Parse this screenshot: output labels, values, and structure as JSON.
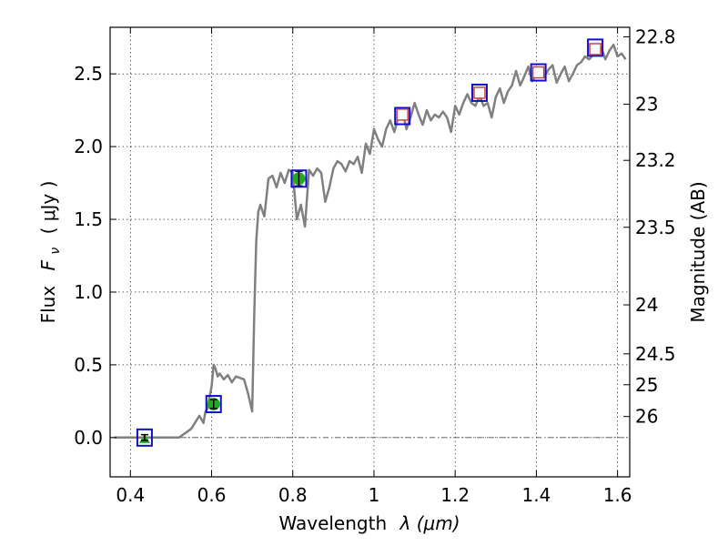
{
  "chart_data": {
    "type": "line",
    "xlabel": "Wavelength",
    "xlabel_symbol": "λ (μm)",
    "ylabel": "Flux",
    "ylabel_symbol": "F",
    "ylabel_subscript": "ν",
    "ylabel_units": "( μJy )",
    "ylabel_right": "Magnitude (AB)",
    "xlim": [
      0.35,
      1.63
    ],
    "ylim": [
      -0.27,
      2.82
    ],
    "grid": true,
    "x_ticks": [
      0.4,
      0.6,
      0.8,
      1.0,
      1.2,
      1.4,
      1.6
    ],
    "x_tick_labels": [
      "0.4",
      "0.6",
      "0.8",
      "1",
      "1.2",
      "1.4",
      "1.6"
    ],
    "y_ticks": [
      0.0,
      0.5,
      1.0,
      1.5,
      2.0,
      2.5
    ],
    "y_tick_labels": [
      "0.0",
      "0.5",
      "1.0",
      "1.5",
      "2.0",
      "2.5"
    ],
    "right_axis": {
      "ticks": [
        22.8,
        23,
        23.2,
        23.5,
        24,
        24.5,
        25,
        26
      ],
      "tick_labels": [
        "22.8",
        "23",
        "23.2",
        "23.5",
        "24",
        "24.5",
        "25",
        "26"
      ]
    },
    "zero_line": 0,
    "series": [
      {
        "kind": "model-spectrum",
        "color": "#808080",
        "x": [
          0.36,
          0.52,
          0.55,
          0.57,
          0.58,
          0.585,
          0.59,
          0.595,
          0.6,
          0.605,
          0.61,
          0.615,
          0.62,
          0.63,
          0.64,
          0.65,
          0.66,
          0.67,
          0.68,
          0.69,
          0.7,
          0.705,
          0.708,
          0.71,
          0.715,
          0.72,
          0.73,
          0.74,
          0.75,
          0.76,
          0.77,
          0.78,
          0.79,
          0.8,
          0.81,
          0.82,
          0.83,
          0.84,
          0.85,
          0.86,
          0.87,
          0.88,
          0.89,
          0.9,
          0.91,
          0.92,
          0.93,
          0.94,
          0.95,
          0.96,
          0.97,
          0.98,
          0.99,
          1.0,
          1.01,
          1.02,
          1.03,
          1.04,
          1.05,
          1.06,
          1.07,
          1.08,
          1.09,
          1.1,
          1.11,
          1.12,
          1.13,
          1.14,
          1.15,
          1.16,
          1.17,
          1.18,
          1.19,
          1.2,
          1.21,
          1.22,
          1.23,
          1.24,
          1.25,
          1.26,
          1.27,
          1.28,
          1.29,
          1.3,
          1.31,
          1.32,
          1.33,
          1.34,
          1.35,
          1.36,
          1.37,
          1.38,
          1.39,
          1.4,
          1.41,
          1.42,
          1.43,
          1.44,
          1.45,
          1.46,
          1.47,
          1.48,
          1.49,
          1.5,
          1.51,
          1.52,
          1.53,
          1.54,
          1.55,
          1.56,
          1.57,
          1.58,
          1.59,
          1.6,
          1.61,
          1.62
        ],
        "y": [
          0.0,
          0.0,
          0.06,
          0.15,
          0.1,
          0.18,
          0.2,
          0.28,
          0.35,
          0.5,
          0.47,
          0.42,
          0.44,
          0.4,
          0.43,
          0.38,
          0.42,
          0.41,
          0.4,
          0.3,
          0.18,
          0.85,
          1.15,
          1.35,
          1.55,
          1.6,
          1.52,
          1.78,
          1.8,
          1.72,
          1.82,
          1.75,
          1.84,
          1.82,
          1.5,
          1.6,
          1.45,
          1.84,
          1.8,
          1.85,
          1.82,
          1.62,
          1.72,
          1.85,
          1.9,
          1.88,
          1.83,
          1.9,
          1.88,
          1.93,
          1.82,
          2.02,
          1.95,
          2.12,
          2.05,
          2.0,
          2.12,
          2.18,
          2.1,
          2.2,
          2.25,
          2.12,
          2.2,
          2.3,
          2.22,
          2.15,
          2.25,
          2.18,
          2.22,
          2.2,
          2.24,
          2.2,
          2.1,
          2.28,
          2.22,
          2.3,
          2.36,
          2.3,
          2.28,
          2.35,
          2.28,
          2.3,
          2.2,
          2.34,
          2.4,
          2.3,
          2.38,
          2.42,
          2.52,
          2.42,
          2.48,
          2.55,
          2.45,
          2.5,
          2.52,
          2.48,
          2.53,
          2.56,
          2.44,
          2.5,
          2.55,
          2.45,
          2.5,
          2.56,
          2.58,
          2.62,
          2.6,
          2.63,
          2.65,
          2.68,
          2.6,
          2.66,
          2.7,
          2.62,
          2.64,
          2.6
        ]
      },
      {
        "kind": "detections",
        "marker": "circle",
        "color": "#22aa22",
        "x": [
          0.435,
          0.605,
          0.815
        ],
        "y": [
          0.0,
          0.23,
          1.78
        ],
        "yerr": [
          0.02,
          0.03,
          0.05
        ]
      },
      {
        "kind": "model-photometry",
        "marker": "square",
        "color": "#1010cc",
        "x": [
          0.435,
          0.605,
          0.815,
          1.07,
          1.26,
          1.405,
          1.545
        ],
        "y": [
          0.0,
          0.23,
          1.78,
          2.21,
          2.37,
          2.51,
          2.68
        ]
      },
      {
        "kind": "upper-points",
        "marker": "open-square",
        "color": "#cc4444",
        "x": [
          1.07,
          1.26,
          1.405,
          1.545
        ],
        "y": [
          2.22,
          2.37,
          2.51,
          2.67
        ]
      }
    ]
  }
}
